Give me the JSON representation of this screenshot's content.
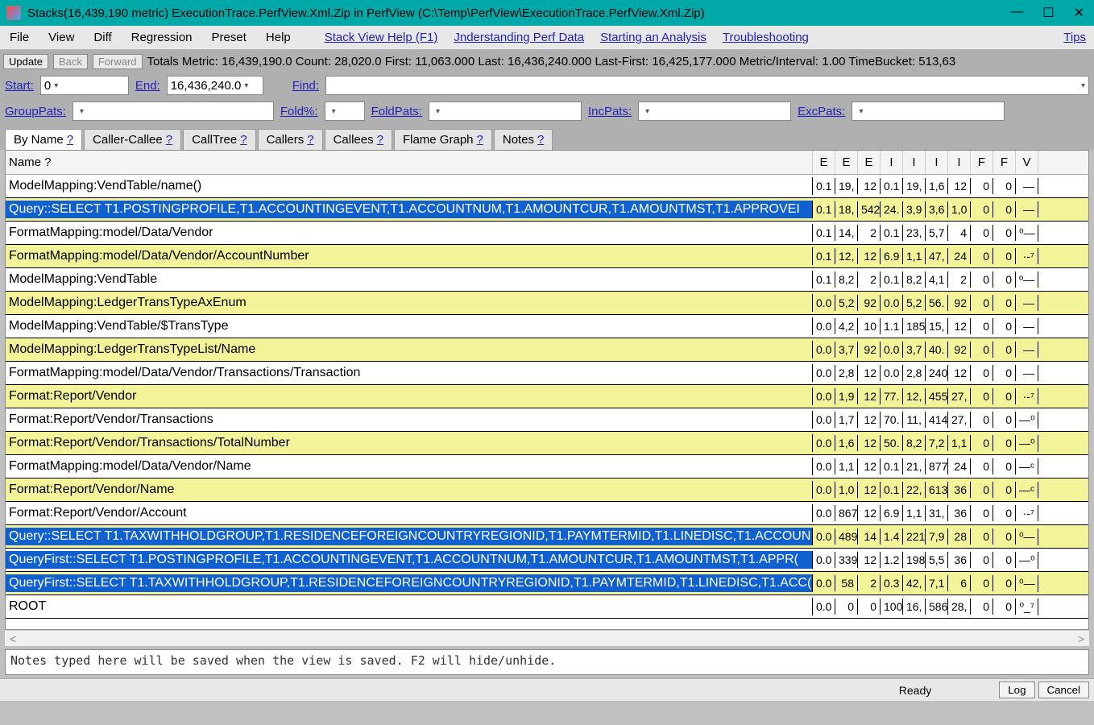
{
  "window": {
    "title": "Stacks(16,439,190 metric) ExecutionTrace.PerfView.Xml.Zip in PerfView (C:\\Temp\\PerfView\\ExecutionTrace.PerfView.Xml.Zip)"
  },
  "menu": {
    "file": "File",
    "view": "View",
    "diff": "Diff",
    "regression": "Regression",
    "preset": "Preset",
    "help": "Help",
    "links": {
      "stackview": "Stack View Help (F1)",
      "understand": "Jnderstanding Perf Data",
      "starting": "Starting an Analysis",
      "trouble": "Troubleshooting",
      "tips": "Tips"
    }
  },
  "toolbar": {
    "update": "Update",
    "back": "Back",
    "forward": "Forward",
    "stats": "Totals Metric: 16,439,190.0   Count: 28,020.0   First: 11,063.000  Last: 16,436,240.000   Last-First: 16,425,177.000   Metric/Interval: 1.00   TimeBucket: 513,63"
  },
  "filter1": {
    "start_lbl": "Start:",
    "start_val": "0",
    "end_lbl": "End:",
    "end_val": "16,436,240.0",
    "find_lbl": "Find:",
    "find_val": ""
  },
  "filter2": {
    "group_lbl": "GroupPats:",
    "group_val": "",
    "foldpct_lbl": "Fold%:",
    "foldpct_val": "",
    "foldpats_lbl": "FoldPats:",
    "foldpats_val": "",
    "incpats_lbl": "IncPats:",
    "incpats_val": "",
    "excpats_lbl": "ExcPats:",
    "excpats_val": ""
  },
  "tabs": {
    "byname": "By Name",
    "callercallee": "Caller-Callee",
    "calltree": "CallTree",
    "callers": "Callers",
    "callees": "Callees",
    "flame": "Flame Graph",
    "notes": "Notes",
    "q": "?"
  },
  "grid": {
    "headers": {
      "name": "Name ?",
      "c": [
        "E",
        "E",
        "E",
        "I",
        "I",
        "I",
        "I",
        "F",
        "F",
        "V"
      ]
    },
    "rows": [
      {
        "sel": false,
        "alt": false,
        "name": "ModelMapping:VendTable/name()",
        "c": [
          "0.1",
          "19,",
          "12",
          "0.1",
          "19,",
          "1,6",
          "12",
          "0",
          "0",
          "—"
        ]
      },
      {
        "sel": true,
        "alt": true,
        "name": "Query::SELECT T1.POSTINGPROFILE,T1.ACCOUNTINGEVENT,T1.ACCOUNTNUM,T1.AMOUNTCUR,T1.AMOUNTMST,T1.APPROVEI",
        "c": [
          "0.1",
          "18,",
          "542",
          "24.",
          "3,9",
          "3,6",
          "1,0",
          "0",
          "0",
          "—"
        ]
      },
      {
        "sel": false,
        "alt": false,
        "name": "FormatMapping:model/Data/Vendor",
        "c": [
          "0.1",
          "14,",
          "2",
          "0.1",
          "23,",
          "5,7",
          "4",
          "0",
          "0",
          "⁰—"
        ]
      },
      {
        "sel": false,
        "alt": true,
        "name": "FormatMapping:model/Data/Vendor/AccountNumber",
        "c": [
          "0.1",
          "12,",
          "12",
          "6.9",
          "1,1",
          "47,",
          "24",
          "0",
          "0",
          "·-⁷"
        ]
      },
      {
        "sel": false,
        "alt": false,
        "name": "ModelMapping:VendTable",
        "c": [
          "0.1",
          "8,2",
          "2",
          "0.1",
          "8,2",
          "4,1",
          "2",
          "0",
          "0",
          "º—"
        ]
      },
      {
        "sel": false,
        "alt": true,
        "name": "ModelMapping:LedgerTransTypeAxEnum",
        "c": [
          "0.0",
          "5,2",
          "92",
          "0.0",
          "5,2",
          "56.",
          "92",
          "0",
          "0",
          "—"
        ]
      },
      {
        "sel": false,
        "alt": false,
        "name": "ModelMapping:VendTable/$TransType",
        "c": [
          "0.0",
          "4,2",
          "10",
          "1.1",
          "185",
          "15,",
          "12",
          "0",
          "0",
          "—"
        ]
      },
      {
        "sel": false,
        "alt": true,
        "name": "ModelMapping:LedgerTransTypeList/Name",
        "c": [
          "0.0",
          "3,7",
          "92",
          "0.0",
          "3,7",
          "40.",
          "92",
          "0",
          "0",
          "—"
        ]
      },
      {
        "sel": false,
        "alt": false,
        "name": "FormatMapping:model/Data/Vendor/Transactions/Transaction",
        "c": [
          "0.0",
          "2,8",
          "12",
          "0.0",
          "2,8",
          "240",
          "12",
          "0",
          "0",
          "—"
        ]
      },
      {
        "sel": false,
        "alt": true,
        "name": "Format:Report/Vendor",
        "c": [
          "0.0",
          "1,9",
          "12",
          "77.",
          "12,",
          "455",
          "27,",
          "0",
          "0",
          "·-⁷"
        ]
      },
      {
        "sel": false,
        "alt": false,
        "name": "Format:Report/Vendor/Transactions",
        "c": [
          "0.0",
          "1,7",
          "12",
          "70.",
          "11,",
          "414",
          "27,",
          "0",
          "0",
          "—⁰"
        ]
      },
      {
        "sel": false,
        "alt": true,
        "name": "Format:Report/Vendor/Transactions/TotalNumber",
        "c": [
          "0.0",
          "1,6",
          "12",
          "50.",
          "8,2",
          "7,2",
          "1,1",
          "0",
          "0",
          "—⁰"
        ]
      },
      {
        "sel": false,
        "alt": false,
        "name": "FormatMapping:model/Data/Vendor/Name",
        "c": [
          "0.0",
          "1,1",
          "12",
          "0.1",
          "21,",
          "877",
          "24",
          "0",
          "0",
          "—ᶜ"
        ]
      },
      {
        "sel": false,
        "alt": true,
        "name": "Format:Report/Vendor/Name",
        "c": [
          "0.0",
          "1,0",
          "12",
          "0.1",
          "22,",
          "613",
          "36",
          "0",
          "0",
          "—ᶜ"
        ]
      },
      {
        "sel": false,
        "alt": false,
        "name": "Format:Report/Vendor/Account",
        "c": [
          "0.0",
          "867",
          "12",
          "6.9",
          "1,1",
          "31,",
          "36",
          "0",
          "0",
          "·-⁷"
        ]
      },
      {
        "sel": true,
        "alt": true,
        "name": "Query::SELECT T1.TAXWITHHOLDGROUP,T1.RESIDENCEFOREIGNCOUNTRYREGIONID,T1.PAYMTERMID,T1.LINEDISC,T1.ACCOUN",
        "c": [
          "0.0",
          "489",
          "14",
          "1.4",
          "221",
          "7,9",
          "28",
          "0",
          "0",
          "⁰—"
        ]
      },
      {
        "sel": true,
        "alt": false,
        "name": "QueryFirst::SELECT T1.POSTINGPROFILE,T1.ACCOUNTINGEVENT,T1.ACCOUNTNUM,T1.AMOUNTCUR,T1.AMOUNTMST,T1.APPR(",
        "c": [
          "0.0",
          "339",
          "12",
          "1.2",
          "198",
          "5,5",
          "36",
          "0",
          "0",
          "—⁰"
        ]
      },
      {
        "sel": true,
        "alt": true,
        "name": "QueryFirst::SELECT T1.TAXWITHHOLDGROUP,T1.RESIDENCEFOREIGNCOUNTRYREGIONID,T1.PAYMTERMID,T1.LINEDISC,T1.ACC(",
        "c": [
          "0.0",
          "58",
          "2",
          "0.3",
          "42,",
          "7,1",
          "6",
          "0",
          "0",
          "⁰—"
        ]
      },
      {
        "sel": false,
        "alt": false,
        "name": "ROOT",
        "c": [
          "0.0",
          "0",
          "0",
          "100",
          "16,",
          "586",
          "28,",
          "0",
          "0",
          "⁰_⁷"
        ]
      }
    ]
  },
  "notes_placeholder": "Notes typed here will be saved when the view is saved.  F2 will hide/unhide.",
  "status": {
    "ready": "Ready",
    "log": "Log",
    "cancel": "Cancel"
  }
}
